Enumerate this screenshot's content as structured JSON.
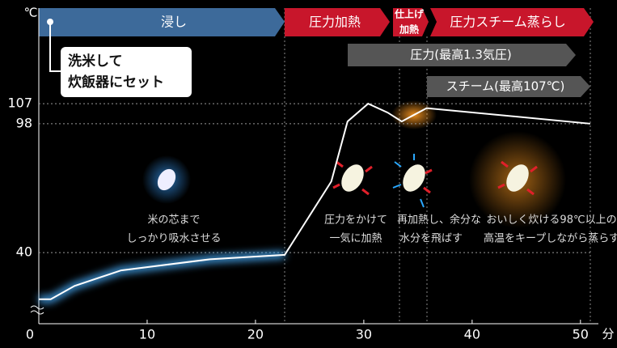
{
  "chart_data": {
    "type": "line",
    "y_unit": "℃",
    "x_unit": "分",
    "x": [
      0,
      1.1,
      3.3,
      7.6,
      15.8,
      22.7,
      27,
      28.5,
      30.4,
      32.2,
      33.5,
      35.8,
      50.9
    ],
    "values": [
      19,
      19,
      25,
      32,
      37,
      39,
      72,
      99,
      107,
      103,
      99,
      105,
      98
    ],
    "color": "#ffffff",
    "xlim": [
      0,
      53
    ],
    "ylim": [
      8,
      150
    ],
    "xticks": [
      0,
      10,
      20,
      30,
      40,
      50
    ],
    "yticks": [
      40,
      98,
      107
    ],
    "phases": [
      "浸し",
      "圧力加熱",
      [
        "仕上げ",
        "加熱"
      ],
      "圧力スチーム蒸らし"
    ],
    "bars": [
      "圧力(最高1.3気圧)",
      "スチーム(最高107℃)"
    ],
    "note": [
      "洗米して",
      "炊飯器にセット"
    ],
    "annotations": [
      [
        "米の芯まで",
        "しっかり吸水させる"
      ],
      [
        "圧力をかけて",
        "一気に加熱"
      ],
      [
        "再加熱し、余分な",
        "水分を飛ばす"
      ],
      [
        "おいしく炊ける98℃以上の",
        "高温をキープしながら蒸らす"
      ]
    ]
  }
}
